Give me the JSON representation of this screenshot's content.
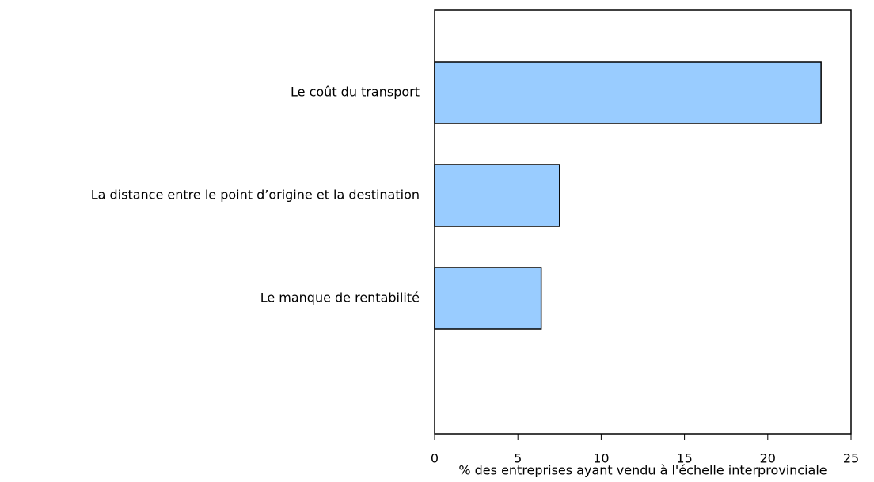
{
  "chart_data": {
    "type": "barh",
    "categories": [
      "Le coût du transport",
      "La distance entre le point d’origine et la destination",
      "Le manque de rentabilité"
    ],
    "values": [
      23.2,
      7.5,
      6.4
    ],
    "color": "#99ccff",
    "xlabel": "% des entreprises ayant vendu à l'échelle interprovinciale",
    "xlim": [
      0,
      25
    ],
    "xticks": [
      0,
      5,
      10,
      15,
      20,
      25
    ],
    "grid": false
  }
}
